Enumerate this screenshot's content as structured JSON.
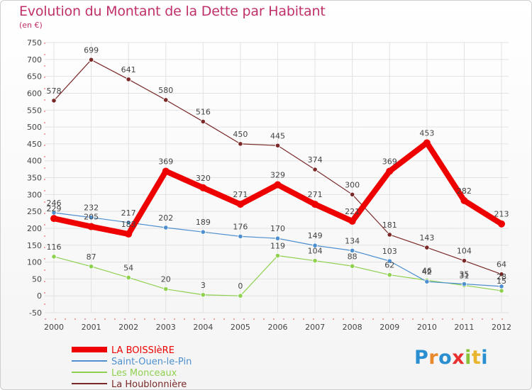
{
  "chart_data": {
    "type": "line",
    "title": "Evolution du Montant de la Dette par Habitant",
    "subtitle": "(en €)",
    "categories": [
      "2000",
      "2001",
      "2002",
      "2003",
      "2004",
      "2005",
      "2006",
      "2007",
      "2008",
      "2009",
      "2010",
      "2011",
      "2012"
    ],
    "ylim": [
      -50,
      750
    ],
    "yticks": [
      -50,
      0,
      50,
      100,
      150,
      200,
      250,
      300,
      350,
      400,
      450,
      500,
      550,
      600,
      650,
      700,
      750
    ],
    "grid": true,
    "legend_position": "bottom-left",
    "series": [
      {
        "name": "LA BOISSIèRE",
        "color": "#ee0000",
        "values": [
          229,
          205,
          183,
          369,
          320,
          271,
          329,
          271,
          221,
          369,
          453,
          282,
          213
        ]
      },
      {
        "name": "Saint-Ouen-le-Pin",
        "color": "#4d8fcf",
        "values": [
          246,
          232,
          217,
          202,
          189,
          176,
          170,
          149,
          134,
          103,
          42,
          35,
          28
        ]
      },
      {
        "name": "Les Monceaux",
        "color": "#8fd050",
        "values": [
          116,
          87,
          54,
          20,
          3,
          0,
          119,
          104,
          88,
          62,
          46,
          31,
          15
        ]
      },
      {
        "name": "La Houblonnière",
        "color": "#7a2828",
        "values": [
          578,
          699,
          641,
          580,
          516,
          450,
          445,
          374,
          300,
          181,
          143,
          104,
          64
        ]
      }
    ]
  },
  "logo": {
    "text": "Proxiti"
  }
}
